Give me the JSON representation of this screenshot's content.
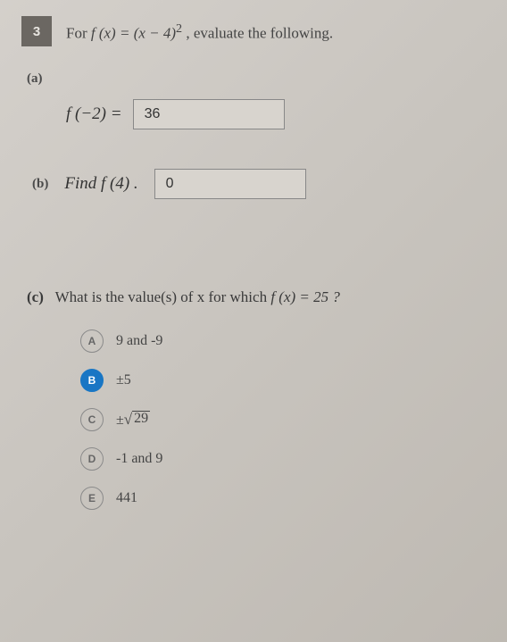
{
  "question_number": "3",
  "prompt_prefix": "For ",
  "prompt_func": "f (x) = (x − 4)",
  "prompt_exp": "2",
  "prompt_suffix": " , evaluate the following.",
  "parts": {
    "a": {
      "label": "(a)",
      "expr_lhs": "f (−2) =",
      "answer": "36"
    },
    "b": {
      "label": "(b)",
      "text": "Find f (4) .",
      "answer": "0"
    },
    "c": {
      "label": "(c)",
      "text_prefix": "What is the value(s) of x for which ",
      "text_func": "f (x) = 25 ?",
      "choices": [
        {
          "letter": "A",
          "text": "9 and -9",
          "selected": false
        },
        {
          "letter": "B",
          "text": "±5",
          "selected": true
        },
        {
          "letter": "C",
          "text_prefix": "±",
          "sqrt": "29",
          "selected": false
        },
        {
          "letter": "D",
          "text": "-1 and 9",
          "selected": false
        },
        {
          "letter": "E",
          "text": "441",
          "selected": false
        }
      ]
    }
  },
  "colors": {
    "selected_bg": "#1976c4",
    "box_border": "#888888"
  }
}
